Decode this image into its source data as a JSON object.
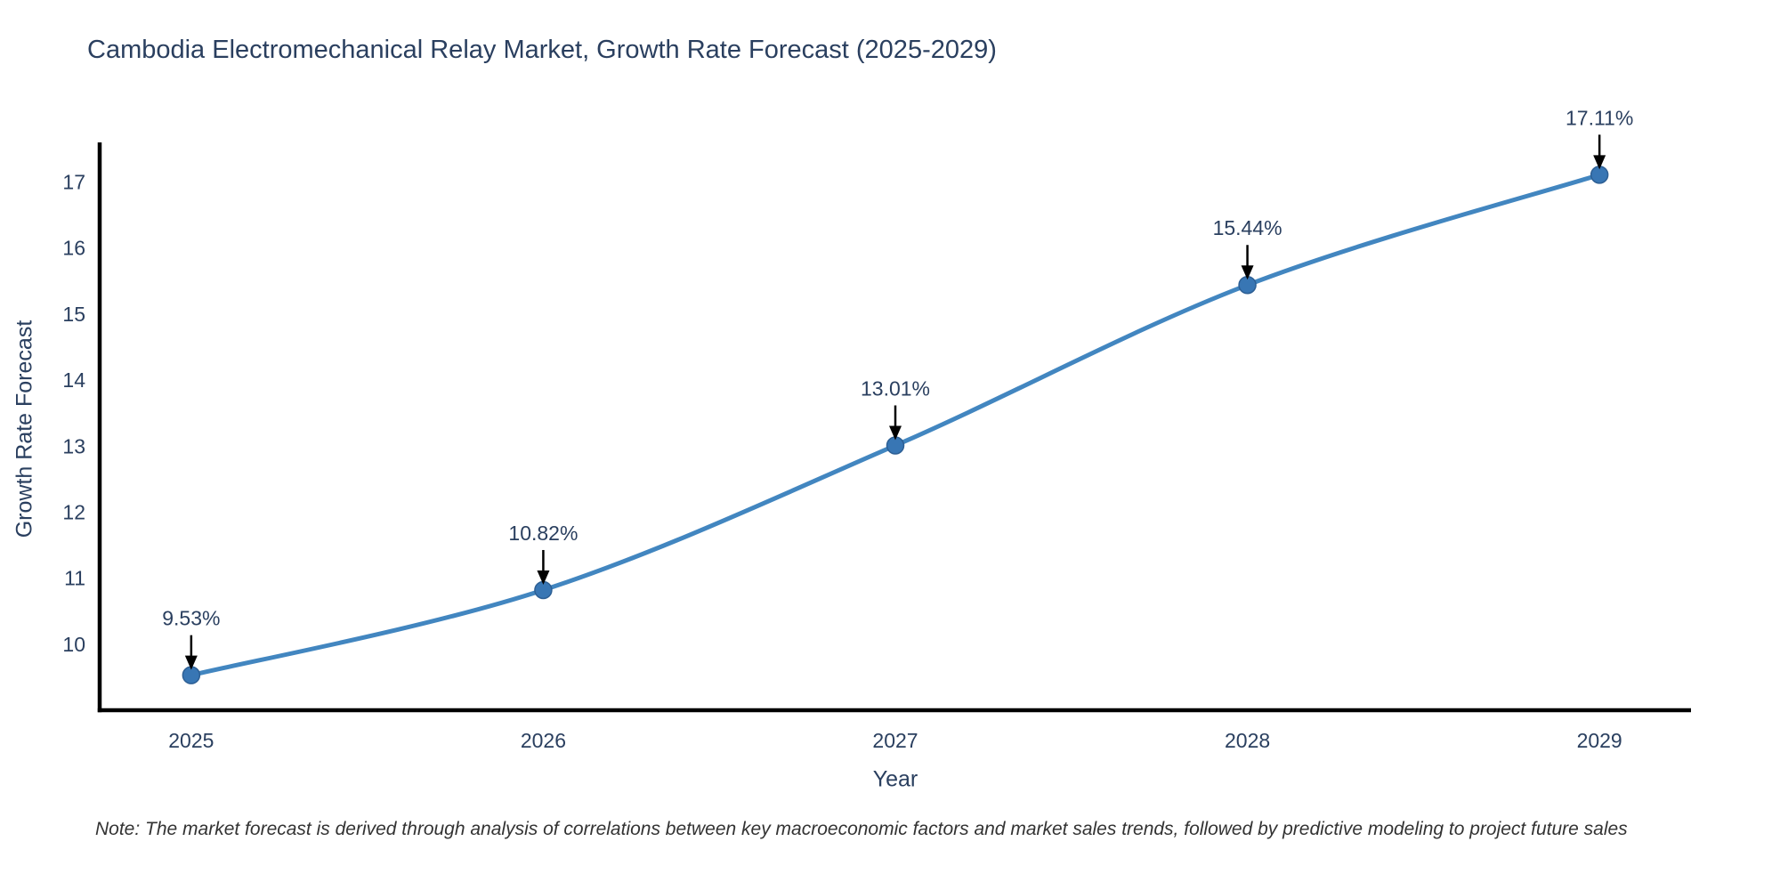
{
  "title": "Cambodia Electromechanical Relay Market, Growth Rate Forecast (2025-2029)",
  "note": "Note: The market forecast is derived through analysis of correlations between key macroeconomic factors and market sales trends, followed by predictive modeling to project future sales",
  "chart_data": {
    "type": "line",
    "title": "Cambodia Electromechanical Relay Market, Growth Rate Forecast (2025-2029)",
    "xlabel": "Year",
    "ylabel": "Growth Rate Forecast",
    "x": [
      2025,
      2026,
      2027,
      2028,
      2029
    ],
    "values": [
      9.53,
      10.82,
      13.01,
      15.44,
      17.11
    ],
    "point_labels": [
      "9.53%",
      "10.82%",
      "13.01%",
      "15.44%",
      "17.11%"
    ],
    "yticks": [
      10,
      11,
      12,
      13,
      14,
      15,
      16,
      17
    ],
    "xticks": [
      "2025",
      "2026",
      "2027",
      "2028",
      "2029"
    ],
    "ylim": [
      9.0,
      17.6
    ],
    "xlim": [
      2024.74,
      2029.26
    ],
    "grid": false,
    "legend_position": "none",
    "line_shape": "spline",
    "colors": {
      "line": "#4286c0",
      "marker": "#3876b4",
      "marker_edge": "#2d5f94",
      "axis": "#000000",
      "tick_text": "#2a3f5f",
      "annotation_text": "#2a3f5f",
      "arrow": "#000000",
      "title_text": "#2a3f5f",
      "note_text": "#333333"
    }
  }
}
